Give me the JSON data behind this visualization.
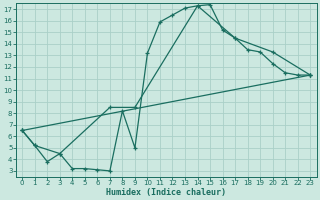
{
  "xlabel": "Humidex (Indice chaleur)",
  "bg_color": "#cce8e0",
  "grid_color": "#aad0c8",
  "line_color": "#1a6e60",
  "xlim": [
    -0.5,
    23.5
  ],
  "ylim": [
    2.5,
    17.5
  ],
  "xticks": [
    0,
    1,
    2,
    3,
    4,
    5,
    6,
    7,
    8,
    9,
    10,
    11,
    12,
    13,
    14,
    15,
    16,
    17,
    18,
    19,
    20,
    21,
    22,
    23
  ],
  "yticks": [
    3,
    4,
    5,
    6,
    7,
    8,
    9,
    10,
    11,
    12,
    13,
    14,
    15,
    16,
    17
  ],
  "line1_x": [
    0,
    1,
    2,
    3,
    4,
    5,
    6,
    7,
    8,
    9,
    10,
    11,
    12,
    13,
    14,
    15,
    16,
    17,
    18,
    19,
    20,
    21,
    22,
    23
  ],
  "line1_y": [
    6.5,
    5.2,
    3.8,
    4.5,
    3.2,
    3.2,
    3.1,
    3.0,
    8.2,
    5.0,
    13.2,
    15.9,
    16.5,
    17.1,
    17.3,
    17.4,
    15.2,
    14.5,
    13.5,
    13.3,
    12.3,
    11.5,
    11.3,
    11.3
  ],
  "line2_x": [
    0,
    1,
    3,
    7,
    9,
    14,
    17,
    20,
    23
  ],
  "line2_y": [
    6.5,
    5.2,
    4.5,
    8.5,
    8.5,
    17.3,
    14.5,
    13.3,
    11.3
  ],
  "line3_x": [
    0,
    23
  ],
  "line3_y": [
    6.5,
    11.3
  ]
}
